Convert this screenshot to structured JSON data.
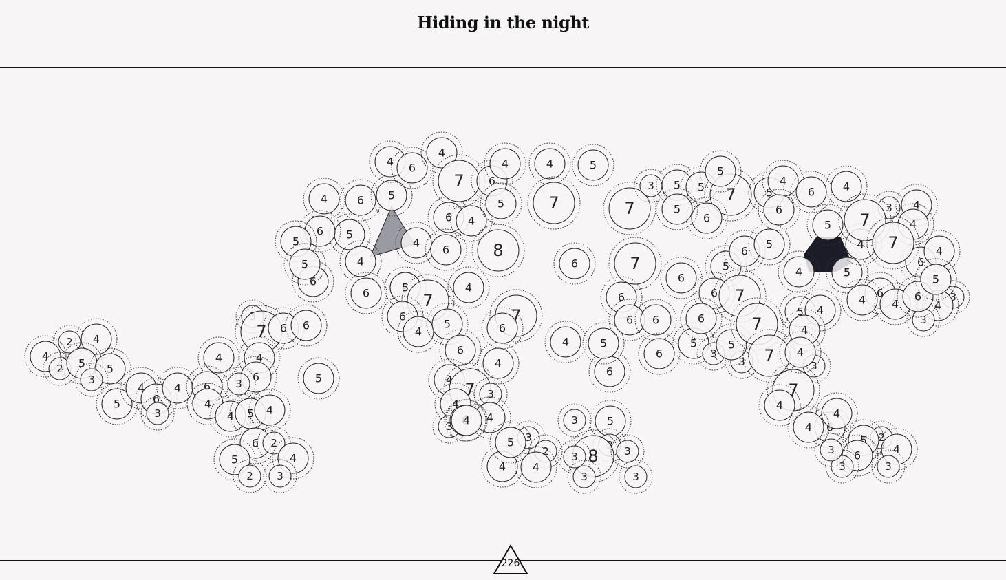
{
  "header": {
    "title": "Hiding in the night"
  },
  "footer": {
    "move_counter": "226"
  },
  "colors": {
    "background": "#f7f5f6",
    "rule": "#111111",
    "node_fill": "#f7f5f6",
    "node_stroke": "#222222",
    "selected_gray": "#9a9aa2",
    "selected_dark": "#1c1c28"
  },
  "nodes": [
    {
      "id": 1,
      "label": "2"
    },
    {
      "id": 2,
      "label": "4"
    },
    {
      "id": 3,
      "label": "4"
    },
    {
      "id": 4,
      "label": "2"
    },
    {
      "id": 5,
      "label": "5"
    },
    {
      "id": 6,
      "label": "5"
    },
    {
      "id": 7,
      "label": "3"
    },
    {
      "id": 8,
      "label": "5"
    },
    {
      "id": 9,
      "label": "4"
    },
    {
      "id": 10,
      "label": "6"
    },
    {
      "id": 11,
      "label": "3"
    },
    {
      "id": 12,
      "label": "4"
    },
    {
      "id": 13,
      "label": "3"
    },
    {
      "id": 14,
      "label": "7"
    },
    {
      "id": 15,
      "label": "6"
    },
    {
      "id": 16,
      "label": "6"
    },
    {
      "id": 17,
      "label": "4"
    },
    {
      "id": 18,
      "label": "4"
    },
    {
      "id": 19,
      "label": "6"
    },
    {
      "id": 20,
      "label": "3"
    },
    {
      "id": 21,
      "label": "6"
    },
    {
      "id": 22,
      "label": "4"
    },
    {
      "id": 23,
      "label": "4"
    },
    {
      "id": 24,
      "label": "5"
    },
    {
      "id": 25,
      "label": "4"
    },
    {
      "id": 26,
      "label": "6"
    },
    {
      "id": 27,
      "label": "2"
    },
    {
      "id": 28,
      "label": "5"
    },
    {
      "id": 29,
      "label": "4"
    },
    {
      "id": 30,
      "label": "2"
    },
    {
      "id": 31,
      "label": "3"
    },
    {
      "id": 32,
      "label": "5"
    },
    {
      "id": 33,
      "label": "4"
    },
    {
      "id": 34,
      "label": "6"
    },
    {
      "id": 35,
      "label": "5"
    },
    {
      "id": 36,
      "label": "5"
    },
    {
      "id": 37,
      "label": "6"
    },
    {
      "id": 38,
      "label": "5"
    },
    {
      "id": 39,
      "label": "6"
    },
    {
      "id": 40,
      "label": "4"
    },
    {
      "id": 41,
      "label": "5"
    },
    {
      "id": 42,
      "label": "4"
    },
    {
      "id": 43,
      "label": "6"
    },
    {
      "id": 44,
      "label": "4"
    },
    {
      "id": 45,
      "label": "6"
    },
    {
      "id": 46,
      "label": "6"
    },
    {
      "id": 47,
      "label": "4"
    },
    {
      "id": 48,
      "label": "7"
    },
    {
      "id": 49,
      "label": "6"
    },
    {
      "id": 50,
      "label": "4"
    },
    {
      "id": 51,
      "label": "4"
    },
    {
      "id": 52,
      "label": "5"
    },
    {
      "id": 53,
      "label": "6"
    },
    {
      "id": 54,
      "label": "8"
    },
    {
      "id": 55,
      "label": "6"
    },
    {
      "id": 56,
      "label": "5"
    },
    {
      "id": 57,
      "label": "7"
    },
    {
      "id": 58,
      "label": "6"
    },
    {
      "id": 59,
      "label": "4"
    },
    {
      "id": 60,
      "label": "4"
    },
    {
      "id": 61,
      "label": "5"
    },
    {
      "id": 62,
      "label": "7"
    },
    {
      "id": 63,
      "label": "6"
    },
    {
      "id": 64,
      "label": "6"
    },
    {
      "id": 65,
      "label": "4"
    },
    {
      "id": 66,
      "label": "4"
    },
    {
      "id": 67,
      "label": "7"
    },
    {
      "id": 68,
      "label": "3"
    },
    {
      "id": 69,
      "label": "4"
    },
    {
      "id": 70,
      "label": "4"
    },
    {
      "id": 71,
      "label": "3"
    },
    {
      "id": 72,
      "label": "6"
    },
    {
      "id": 73,
      "label": "4"
    },
    {
      "id": 74,
      "label": "5"
    },
    {
      "id": 75,
      "label": "3"
    },
    {
      "id": 76,
      "label": "2"
    },
    {
      "id": 77,
      "label": "4"
    },
    {
      "id": 78,
      "label": "4"
    },
    {
      "id": 79,
      "label": "4"
    },
    {
      "id": 80,
      "label": "7"
    },
    {
      "id": 81,
      "label": "6"
    },
    {
      "id": 82,
      "label": "4"
    },
    {
      "id": 83,
      "label": "5"
    },
    {
      "id": 84,
      "label": "6"
    },
    {
      "id": 85,
      "label": "5"
    },
    {
      "id": 86,
      "label": "3"
    },
    {
      "id": 87,
      "label": "5"
    },
    {
      "id": 88,
      "label": "3"
    },
    {
      "id": 89,
      "label": "8"
    },
    {
      "id": 90,
      "label": "3"
    },
    {
      "id": 91,
      "label": "3"
    },
    {
      "id": 92,
      "label": "3"
    },
    {
      "id": 93,
      "label": "3"
    },
    {
      "id": 94,
      "label": "7"
    },
    {
      "id": 95,
      "label": "3"
    },
    {
      "id": 96,
      "label": "5"
    },
    {
      "id": 97,
      "label": "5"
    },
    {
      "id": 98,
      "label": "7"
    },
    {
      "id": 99,
      "label": "5"
    },
    {
      "id": 100,
      "label": "6"
    },
    {
      "id": 101,
      "label": "5"
    },
    {
      "id": 102,
      "label": "7"
    },
    {
      "id": 103,
      "label": "6"
    },
    {
      "id": 104,
      "label": "6"
    },
    {
      "id": 105,
      "label": "6"
    },
    {
      "id": 106,
      "label": "6"
    },
    {
      "id": 107,
      "label": "6"
    },
    {
      "id": 108,
      "label": "5"
    },
    {
      "id": 109,
      "label": "5"
    },
    {
      "id": 110,
      "label": "3"
    },
    {
      "id": 111,
      "label": "3"
    },
    {
      "id": 112,
      "label": "6"
    },
    {
      "id": 113,
      "label": "5"
    },
    {
      "id": 114,
      "label": "6"
    },
    {
      "id": 115,
      "label": "6"
    },
    {
      "id": 116,
      "label": "5"
    },
    {
      "id": 117,
      "label": "7"
    },
    {
      "id": 118,
      "label": "7"
    },
    {
      "id": 119,
      "label": "7"
    },
    {
      "id": 120,
      "label": "5"
    },
    {
      "id": 121,
      "label": "5"
    },
    {
      "id": 122,
      "label": "4"
    },
    {
      "id": 123,
      "label": "5"
    },
    {
      "id": 124,
      "label": "6"
    },
    {
      "id": 125,
      "label": "4"
    },
    {
      "id": 126,
      "label": "6"
    },
    {
      "id": 127,
      "label": "5"
    },
    {
      "id": 128,
      "label": "4"
    },
    {
      "id": 129,
      "label": "4"
    },
    {
      "id": 130,
      "label": "4"
    },
    {
      "id": 131,
      "label": "3"
    },
    {
      "id": 132,
      "label": "7"
    },
    {
      "id": 133,
      "label": "4"
    },
    {
      "id": 134,
      "label": "4"
    },
    {
      "id": 135,
      "label": "4"
    },
    {
      "id": 136,
      "label": "6"
    },
    {
      "id": 137,
      "label": "4"
    },
    {
      "id": 138,
      "label": "6"
    },
    {
      "id": 139,
      "label": "3"
    },
    {
      "id": 140,
      "label": "5"
    },
    {
      "id": 141,
      "label": "2"
    },
    {
      "id": 142,
      "label": "4"
    },
    {
      "id": 143,
      "label": "3"
    },
    {
      "id": 144,
      "label": "3"
    },
    {
      "id": 145,
      "label": "5"
    },
    {
      "id": 146,
      "label": "7"
    },
    {
      "id": 147,
      "label": "4"
    },
    {
      "id": 148,
      "label": "4"
    },
    {
      "id": 149,
      "label": "3"
    },
    {
      "id": 150,
      "label": "7"
    },
    {
      "id": 151,
      "label": "4"
    },
    {
      "id": 152,
      "label": "4"
    },
    {
      "id": 153,
      "label": "6"
    },
    {
      "id": 154,
      "label": "4"
    },
    {
      "id": 155,
      "label": "5"
    },
    {
      "id": 156,
      "label": "6"
    },
    {
      "id": 157,
      "label": "6"
    },
    {
      "id": 158,
      "label": "4"
    },
    {
      "id": 159,
      "label": "4"
    },
    {
      "id": 160,
      "label": "3"
    },
    {
      "id": 161,
      "label": "3"
    }
  ]
}
